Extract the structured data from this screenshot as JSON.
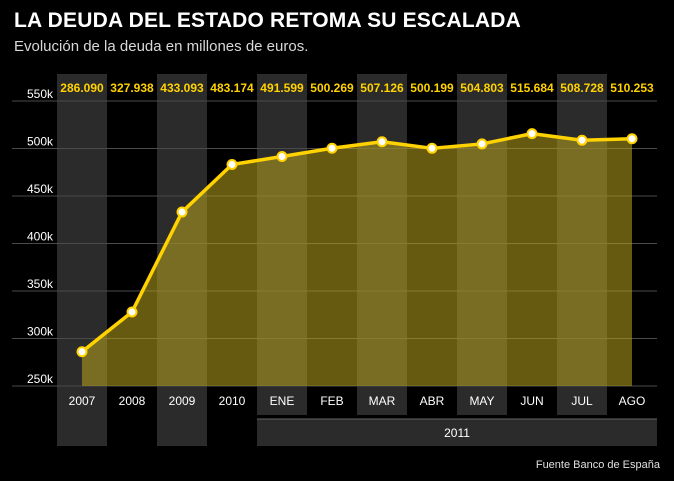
{
  "header": {
    "title": "LA DEUDA DEL ESTADO RETOMA SU ESCALADA",
    "subtitle": "Evolución de la deuda en millones de euros."
  },
  "footer": {
    "source": "Fuente Banco de España"
  },
  "chart_data": {
    "type": "area",
    "categories": [
      "2007",
      "2008",
      "2009",
      "2010",
      "ENE",
      "FEB",
      "MAR",
      "ABR",
      "MAY",
      "JUN",
      "JUL",
      "AGO"
    ],
    "values": [
      286090,
      327938,
      433093,
      483174,
      491599,
      500269,
      507126,
      500199,
      504803,
      515684,
      508728,
      510253
    ],
    "value_labels": [
      "286.090",
      "327.938",
      "433.093",
      "483.174",
      "491.599",
      "500.269",
      "507.126",
      "500.199",
      "504.803",
      "515.684",
      "508.728",
      "510.253"
    ],
    "ylim": [
      250000,
      550000
    ],
    "yticks": [
      250000,
      300000,
      350000,
      400000,
      450000,
      500000,
      550000
    ],
    "ytick_labels": [
      "250k",
      "300k",
      "350k",
      "400k",
      "450k",
      "500k",
      "550k"
    ],
    "group_label": "2011",
    "grid": true,
    "colors": {
      "line": "#ffd200",
      "fill": "#b8a41e",
      "marker": "#ffffff",
      "band": "#2b2b2b",
      "grid": "#4a4a4a"
    }
  }
}
